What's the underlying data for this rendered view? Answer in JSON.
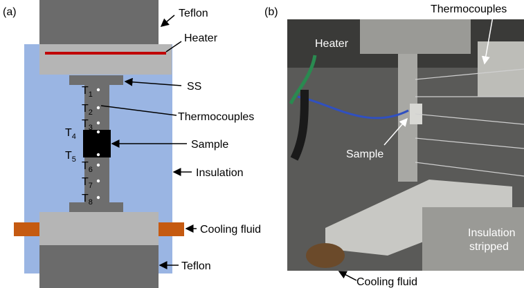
{
  "panels": [
    {
      "label": "(a)",
      "annotations": [
        "Teflon",
        "Heater",
        "SS",
        "Thermocouples",
        "Sample",
        "Insulation",
        "Cooling fluid",
        "Teflon"
      ],
      "thermocouples": [
        {
          "base": "T",
          "sub": "1"
        },
        {
          "base": "T",
          "sub": "2"
        },
        {
          "base": "T",
          "sub": "3"
        },
        {
          "base": "T",
          "sub": "4"
        },
        {
          "base": "T",
          "sub": "5"
        },
        {
          "base": "T",
          "sub": "6"
        },
        {
          "base": "T",
          "sub": "7"
        },
        {
          "base": "T",
          "sub": "8"
        }
      ]
    },
    {
      "label": "(b)",
      "annotations": [
        "Thermocouples",
        "Heater",
        "Sample",
        "Insulation",
        "stripped",
        "Cooling fluid"
      ]
    }
  ]
}
